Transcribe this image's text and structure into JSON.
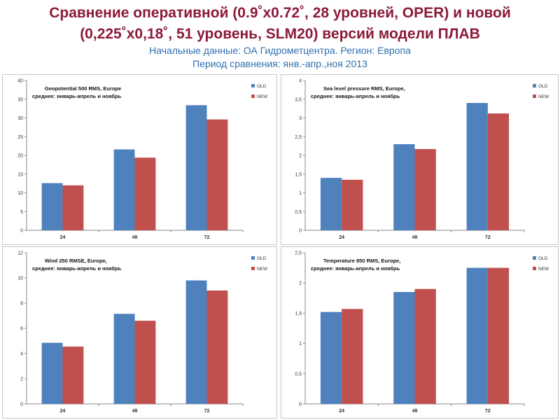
{
  "header": {
    "title_line1": "Сравнение оперативной (0.9˚x0.72˚, 28 уровней, OPER) и новой",
    "title_line2": "(0,225˚x0,18˚, 51 уровень, SLM20) версий модели ПЛАВ",
    "subtitle_line1": "Начальные данные: ОА Гидрометцентра. Регион: Европа",
    "subtitle_line2": "Период сравнения: янв.-апр.,ноя 2013"
  },
  "colors": {
    "title": "#8b1a3a",
    "subtitle": "#2f6fb0",
    "old": "#4f81bd",
    "new": "#c0504d"
  },
  "chart_data": [
    {
      "type": "bar",
      "title": "Geopotential 500 RMS, Europe",
      "subtitle": "среднее: январь-апрель и ноябрь",
      "categories": [
        "24",
        "48",
        "72"
      ],
      "ylim": [
        0,
        40
      ],
      "yticks": [
        "0",
        "5",
        "10",
        "15",
        "20",
        "25",
        "30",
        "35",
        "40"
      ],
      "series": [
        {
          "name": "OLD",
          "values": [
            12.6,
            21.6,
            33.4
          ]
        },
        {
          "name": "NEW",
          "values": [
            12.0,
            19.4,
            29.6
          ]
        }
      ]
    },
    {
      "type": "bar",
      "title": "Sea level pressure RMS, Europe,",
      "subtitle": "среднее: январь-апрель и ноябрь",
      "categories": [
        "24",
        "48",
        "72"
      ],
      "ylim": [
        0,
        4
      ],
      "yticks": [
        "0",
        "0,5",
        "1",
        "1,5",
        "2",
        "2,5",
        "3",
        "3,5",
        "4"
      ],
      "series": [
        {
          "name": "OLD",
          "values": [
            1.4,
            2.3,
            3.4
          ]
        },
        {
          "name": "NEW",
          "values": [
            1.35,
            2.17,
            3.12
          ]
        }
      ]
    },
    {
      "type": "bar",
      "title": "Wind 250 RMSE, Europe,",
      "subtitle": "среднее: январь-апрель и ноябрь",
      "categories": [
        "24",
        "48",
        "72"
      ],
      "ylim": [
        0,
        12
      ],
      "yticks": [
        "0",
        "2",
        "4",
        "6",
        "8",
        "10",
        "12"
      ],
      "series": [
        {
          "name": "OLD",
          "values": [
            4.85,
            7.15,
            9.8
          ]
        },
        {
          "name": "NEW",
          "values": [
            4.55,
            6.6,
            9.0
          ]
        }
      ]
    },
    {
      "type": "bar",
      "title": "Temperature 850 RMS, Europe,",
      "subtitle": "среднее: январь-апрель и ноябрь",
      "categories": [
        "24",
        "48",
        "72"
      ],
      "ylim": [
        0,
        2.5
      ],
      "yticks": [
        "0",
        "0,5",
        "1",
        "1,5",
        "2",
        "2,5"
      ],
      "series": [
        {
          "name": "OLD",
          "values": [
            1.52,
            1.85,
            2.25
          ]
        },
        {
          "name": "NEW",
          "values": [
            1.57,
            1.9,
            2.25
          ]
        }
      ]
    }
  ]
}
